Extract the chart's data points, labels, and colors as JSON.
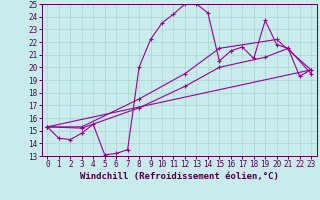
{
  "background_color": "#c8ecec",
  "grid_color": "#aad4d4",
  "line_color": "#990099",
  "xlim": [
    -0.5,
    23.5
  ],
  "ylim": [
    13,
    25
  ],
  "xticks": [
    0,
    1,
    2,
    3,
    4,
    5,
    6,
    7,
    8,
    9,
    10,
    11,
    12,
    13,
    14,
    15,
    16,
    17,
    18,
    19,
    20,
    21,
    22,
    23
  ],
  "yticks": [
    13,
    14,
    15,
    16,
    17,
    18,
    19,
    20,
    21,
    22,
    23,
    24,
    25
  ],
  "series1_x": [
    0,
    1,
    2,
    3,
    4,
    5,
    6,
    7,
    8,
    9,
    10,
    11,
    12,
    13,
    14,
    15,
    16,
    17,
    18,
    19,
    20,
    21,
    22,
    23
  ],
  "series1_y": [
    15.3,
    14.4,
    14.3,
    14.8,
    15.5,
    13.1,
    13.2,
    13.5,
    20.0,
    22.2,
    23.5,
    24.2,
    25.0,
    25.0,
    24.3,
    20.5,
    21.3,
    21.6,
    20.7,
    23.7,
    21.8,
    21.5,
    19.3,
    19.8
  ],
  "series2_x": [
    0,
    3,
    8,
    12,
    15,
    19,
    21,
    23
  ],
  "series2_y": [
    15.3,
    15.2,
    16.8,
    18.5,
    20.0,
    20.8,
    21.5,
    19.5
  ],
  "series3_x": [
    0,
    3,
    8,
    12,
    15,
    20,
    23
  ],
  "series3_y": [
    15.3,
    15.3,
    17.5,
    19.5,
    21.5,
    22.2,
    19.8
  ],
  "series4_x": [
    0,
    23
  ],
  "series4_y": [
    15.3,
    19.8
  ],
  "xlabel": "Windchill (Refroidissement éolien,°C)",
  "tick_fontsize": 5.5,
  "label_fontsize": 6.5
}
